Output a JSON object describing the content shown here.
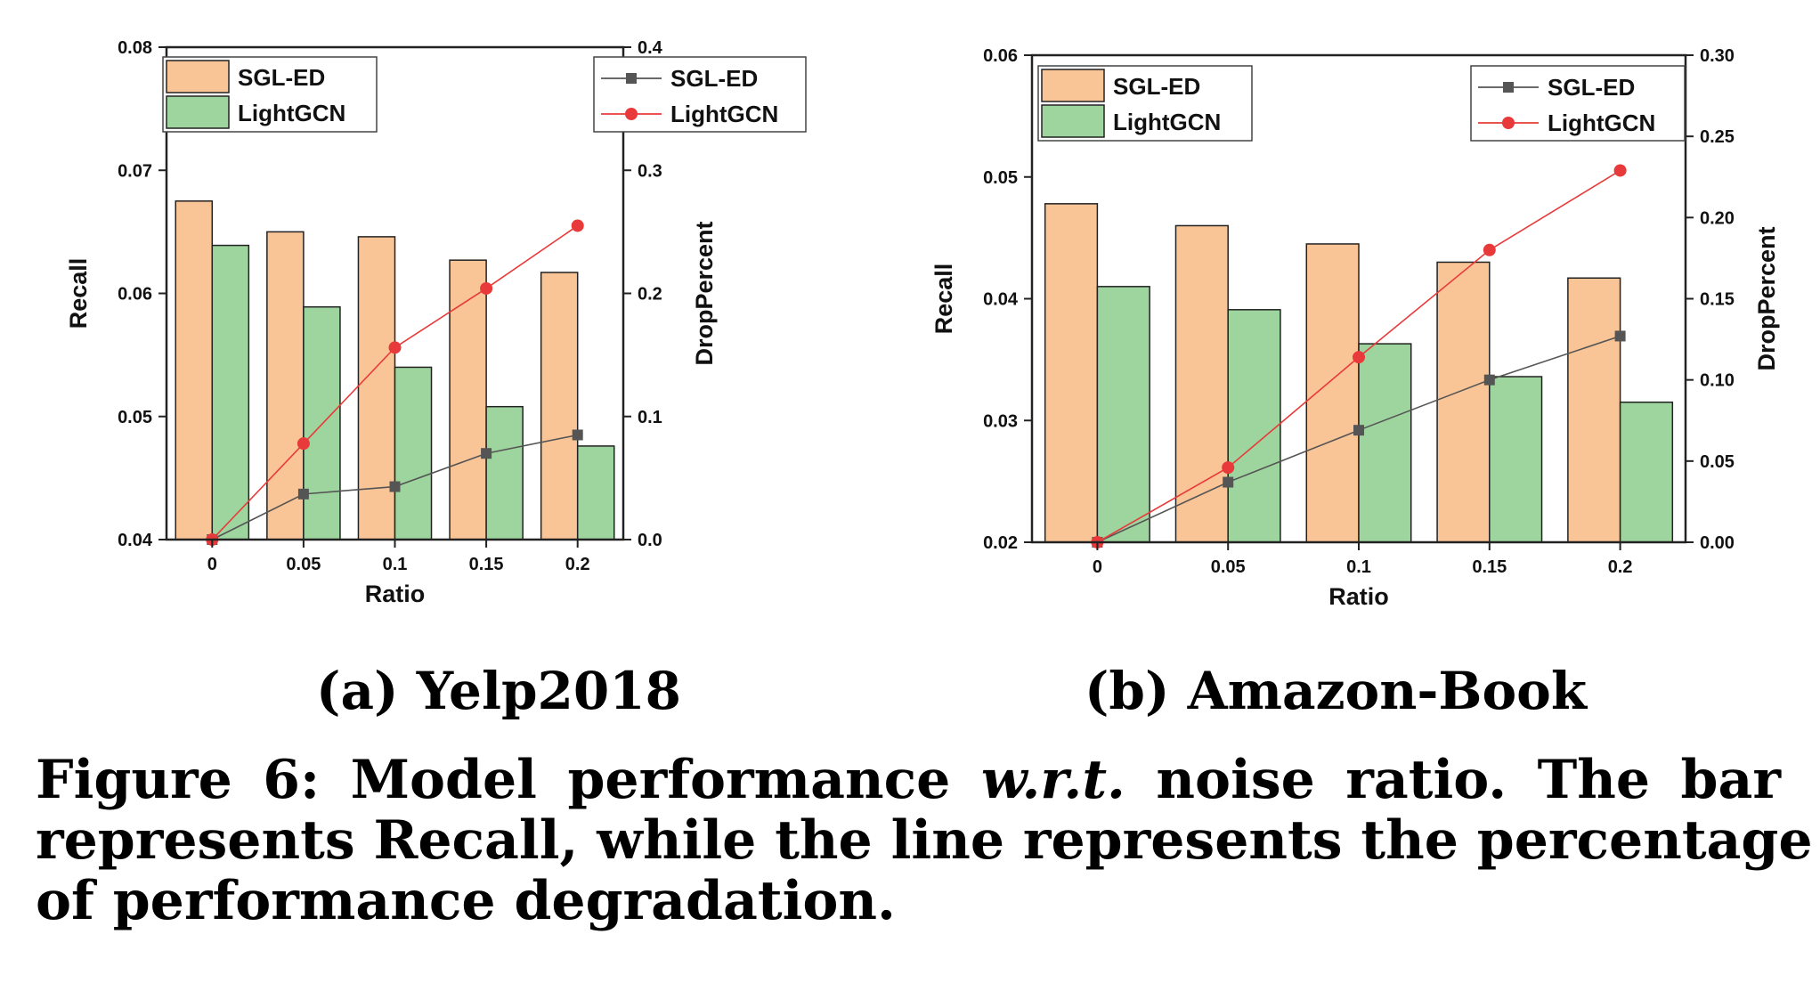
{
  "chart_data": [
    {
      "type": "bar",
      "panel_label": "(a) Yelp2018",
      "categories": [
        "0",
        "0.05",
        "0.1",
        "0.15",
        "0.2"
      ],
      "xlabel": "Ratio",
      "ylabel": "Recall",
      "ylabel_right": "DropPercent",
      "ylim": [
        0.04,
        0.08
      ],
      "yticks": [
        "0.04",
        "0.05",
        "0.06",
        "0.07",
        "0.08"
      ],
      "ylim_right": [
        0.0,
        0.4
      ],
      "yticks_right": [
        "0.0",
        "0.1",
        "0.2",
        "0.3",
        "0.4"
      ],
      "bar_series": [
        {
          "name": "SGL-ED",
          "color": "#f9c596",
          "values": [
            0.0675,
            0.065,
            0.0646,
            0.0627,
            0.0617
          ]
        },
        {
          "name": "LightGCN",
          "color": "#9ed59e",
          "values": [
            0.0639,
            0.0589,
            0.054,
            0.0508,
            0.0476
          ]
        }
      ],
      "line_series": [
        {
          "name": "SGL-ED",
          "color": "#555555",
          "marker": "square",
          "values": [
            0.0,
            0.037,
            0.043,
            0.07,
            0.085
          ]
        },
        {
          "name": "LightGCN",
          "color": "#e83a3a",
          "marker": "circle",
          "values": [
            0.0,
            0.078,
            0.156,
            0.204,
            0.255
          ]
        }
      ],
      "legend_bars_position": "top-left",
      "legend_lines_position": "top-right",
      "grid": false
    },
    {
      "type": "bar",
      "panel_label": "(b) Amazon-Book",
      "categories": [
        "0",
        "0.05",
        "0.1",
        "0.15",
        "0.2"
      ],
      "xlabel": "Ratio",
      "ylabel": "Recall",
      "ylabel_right": "DropPercent",
      "ylim": [
        0.02,
        0.06
      ],
      "yticks": [
        "0.02",
        "0.03",
        "0.04",
        "0.05",
        "0.06"
      ],
      "ylim_right": [
        0.0,
        0.3
      ],
      "yticks_right": [
        "0.00",
        "0.05",
        "0.10",
        "0.15",
        "0.20",
        "0.25",
        "0.30"
      ],
      "bar_series": [
        {
          "name": "SGL-ED",
          "color": "#f9c596",
          "values": [
            0.0478,
            0.046,
            0.0445,
            0.043,
            0.0417
          ]
        },
        {
          "name": "LightGCN",
          "color": "#9ed59e",
          "values": [
            0.041,
            0.0391,
            0.0363,
            0.0336,
            0.0315
          ]
        }
      ],
      "line_series": [
        {
          "name": "SGL-ED",
          "color": "#555555",
          "marker": "square",
          "values": [
            0.0,
            0.037,
            0.069,
            0.1,
            0.127
          ]
        },
        {
          "name": "LightGCN",
          "color": "#e83a3a",
          "marker": "circle",
          "values": [
            0.0,
            0.046,
            0.114,
            0.18,
            0.229
          ]
        }
      ],
      "legend_bars_position": "top-left",
      "legend_lines_position": "top-right",
      "grid": false
    }
  ],
  "caption": {
    "line1_a": "Figure 6: Model performance ",
    "line1_b": "w.r.t.",
    "line1_c": " noise ratio. The bar",
    "line2": "represents Recall, while the line represents the percentage",
    "line3": "of performance degradation."
  }
}
